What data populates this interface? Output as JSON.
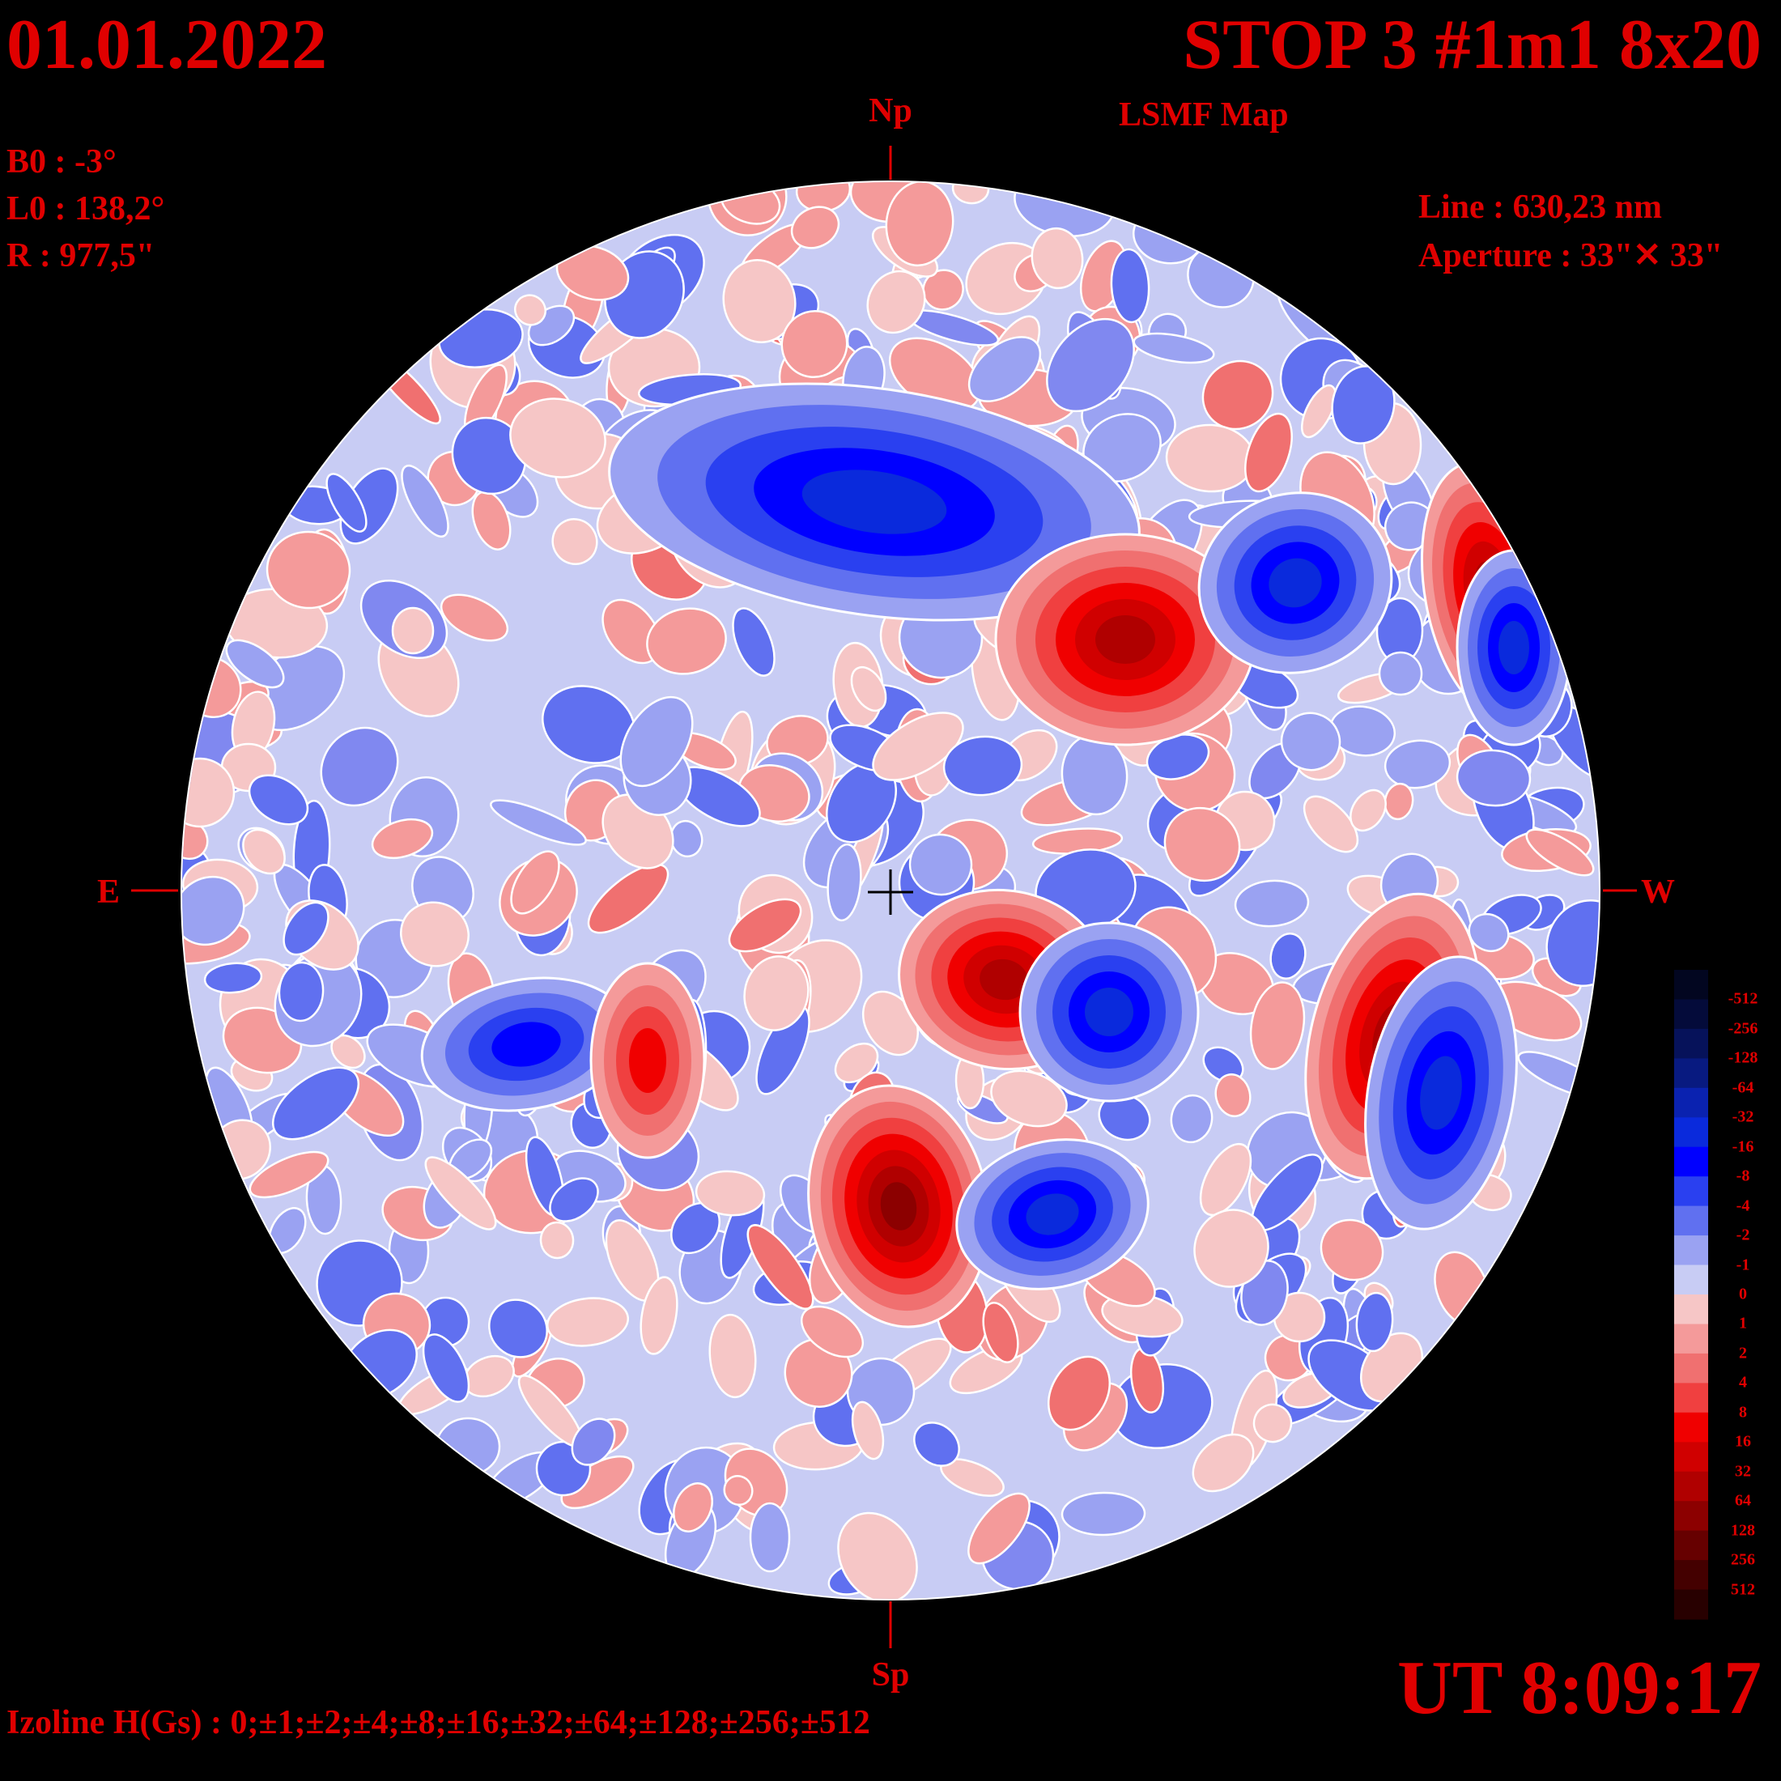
{
  "header": {
    "date": "01.01.2022",
    "title": "STOP 3 #1m1 8x20",
    "subtitle": "LSMF  Map"
  },
  "params": {
    "b0": "B0 : -3°",
    "l0": "L0 : 138,2°",
    "r": "R  : 977,5\""
  },
  "instrument": {
    "line": "Line :  630,23 nm",
    "aperture": "Aperture : 33\"✕ 33\""
  },
  "directions": {
    "north": "Np",
    "south": "Sp",
    "east": "E",
    "west": "W"
  },
  "footer": {
    "ut": "UT 8:09:17",
    "izoline": "Izoline H(Gs) : 0;±1;±2;±4;±8;±16;±32;±64;±128;±256;±512"
  },
  "legend": {
    "labels": [
      "-512",
      "-256",
      "-128",
      "-64",
      "-32",
      "-16",
      "-8",
      "-4",
      "-2",
      "-1",
      "0",
      "1",
      "2",
      "4",
      "8",
      "16",
      "32",
      "64",
      "128",
      "256",
      "512"
    ],
    "colors": [
      "#020620",
      "#040b3a",
      "#06125a",
      "#081a80",
      "#0a22b0",
      "#0a2adc",
      "#0000ff",
      "#2a40f0",
      "#6070f0",
      "#9aa2f2",
      "#c8ccf4",
      "#f6c6c6",
      "#f49a9a",
      "#f07070",
      "#f04040",
      "#f00000",
      "#d00000",
      "#b00000",
      "#8c0000",
      "#660000",
      "#440000",
      "#280000"
    ]
  },
  "colors": {
    "text": "#e00000",
    "background": "#000000",
    "disk_edge": "#ffffff"
  },
  "regions": [
    {
      "polarity": "negative",
      "level": 32,
      "location": "north-center band"
    },
    {
      "polarity": "positive",
      "level": 64,
      "location": "north-west"
    },
    {
      "polarity": "negative",
      "level": 32,
      "location": "north-west"
    },
    {
      "polarity": "positive",
      "level": 64,
      "location": "west limb"
    },
    {
      "polarity": "negative",
      "level": 32,
      "location": "west limb"
    },
    {
      "polarity": "positive",
      "level": 64,
      "location": "center-south"
    },
    {
      "polarity": "negative",
      "level": 32,
      "location": "center-south"
    },
    {
      "polarity": "positive",
      "level": 128,
      "location": "south-west"
    },
    {
      "polarity": "negative",
      "level": 32,
      "location": "south-west"
    },
    {
      "polarity": "positive",
      "level": 64,
      "location": "south-east"
    },
    {
      "polarity": "negative",
      "level": 32,
      "location": "south-east"
    },
    {
      "polarity": "negative",
      "level": 16,
      "location": "east"
    },
    {
      "polarity": "positive",
      "level": 16,
      "location": "north-east"
    }
  ]
}
